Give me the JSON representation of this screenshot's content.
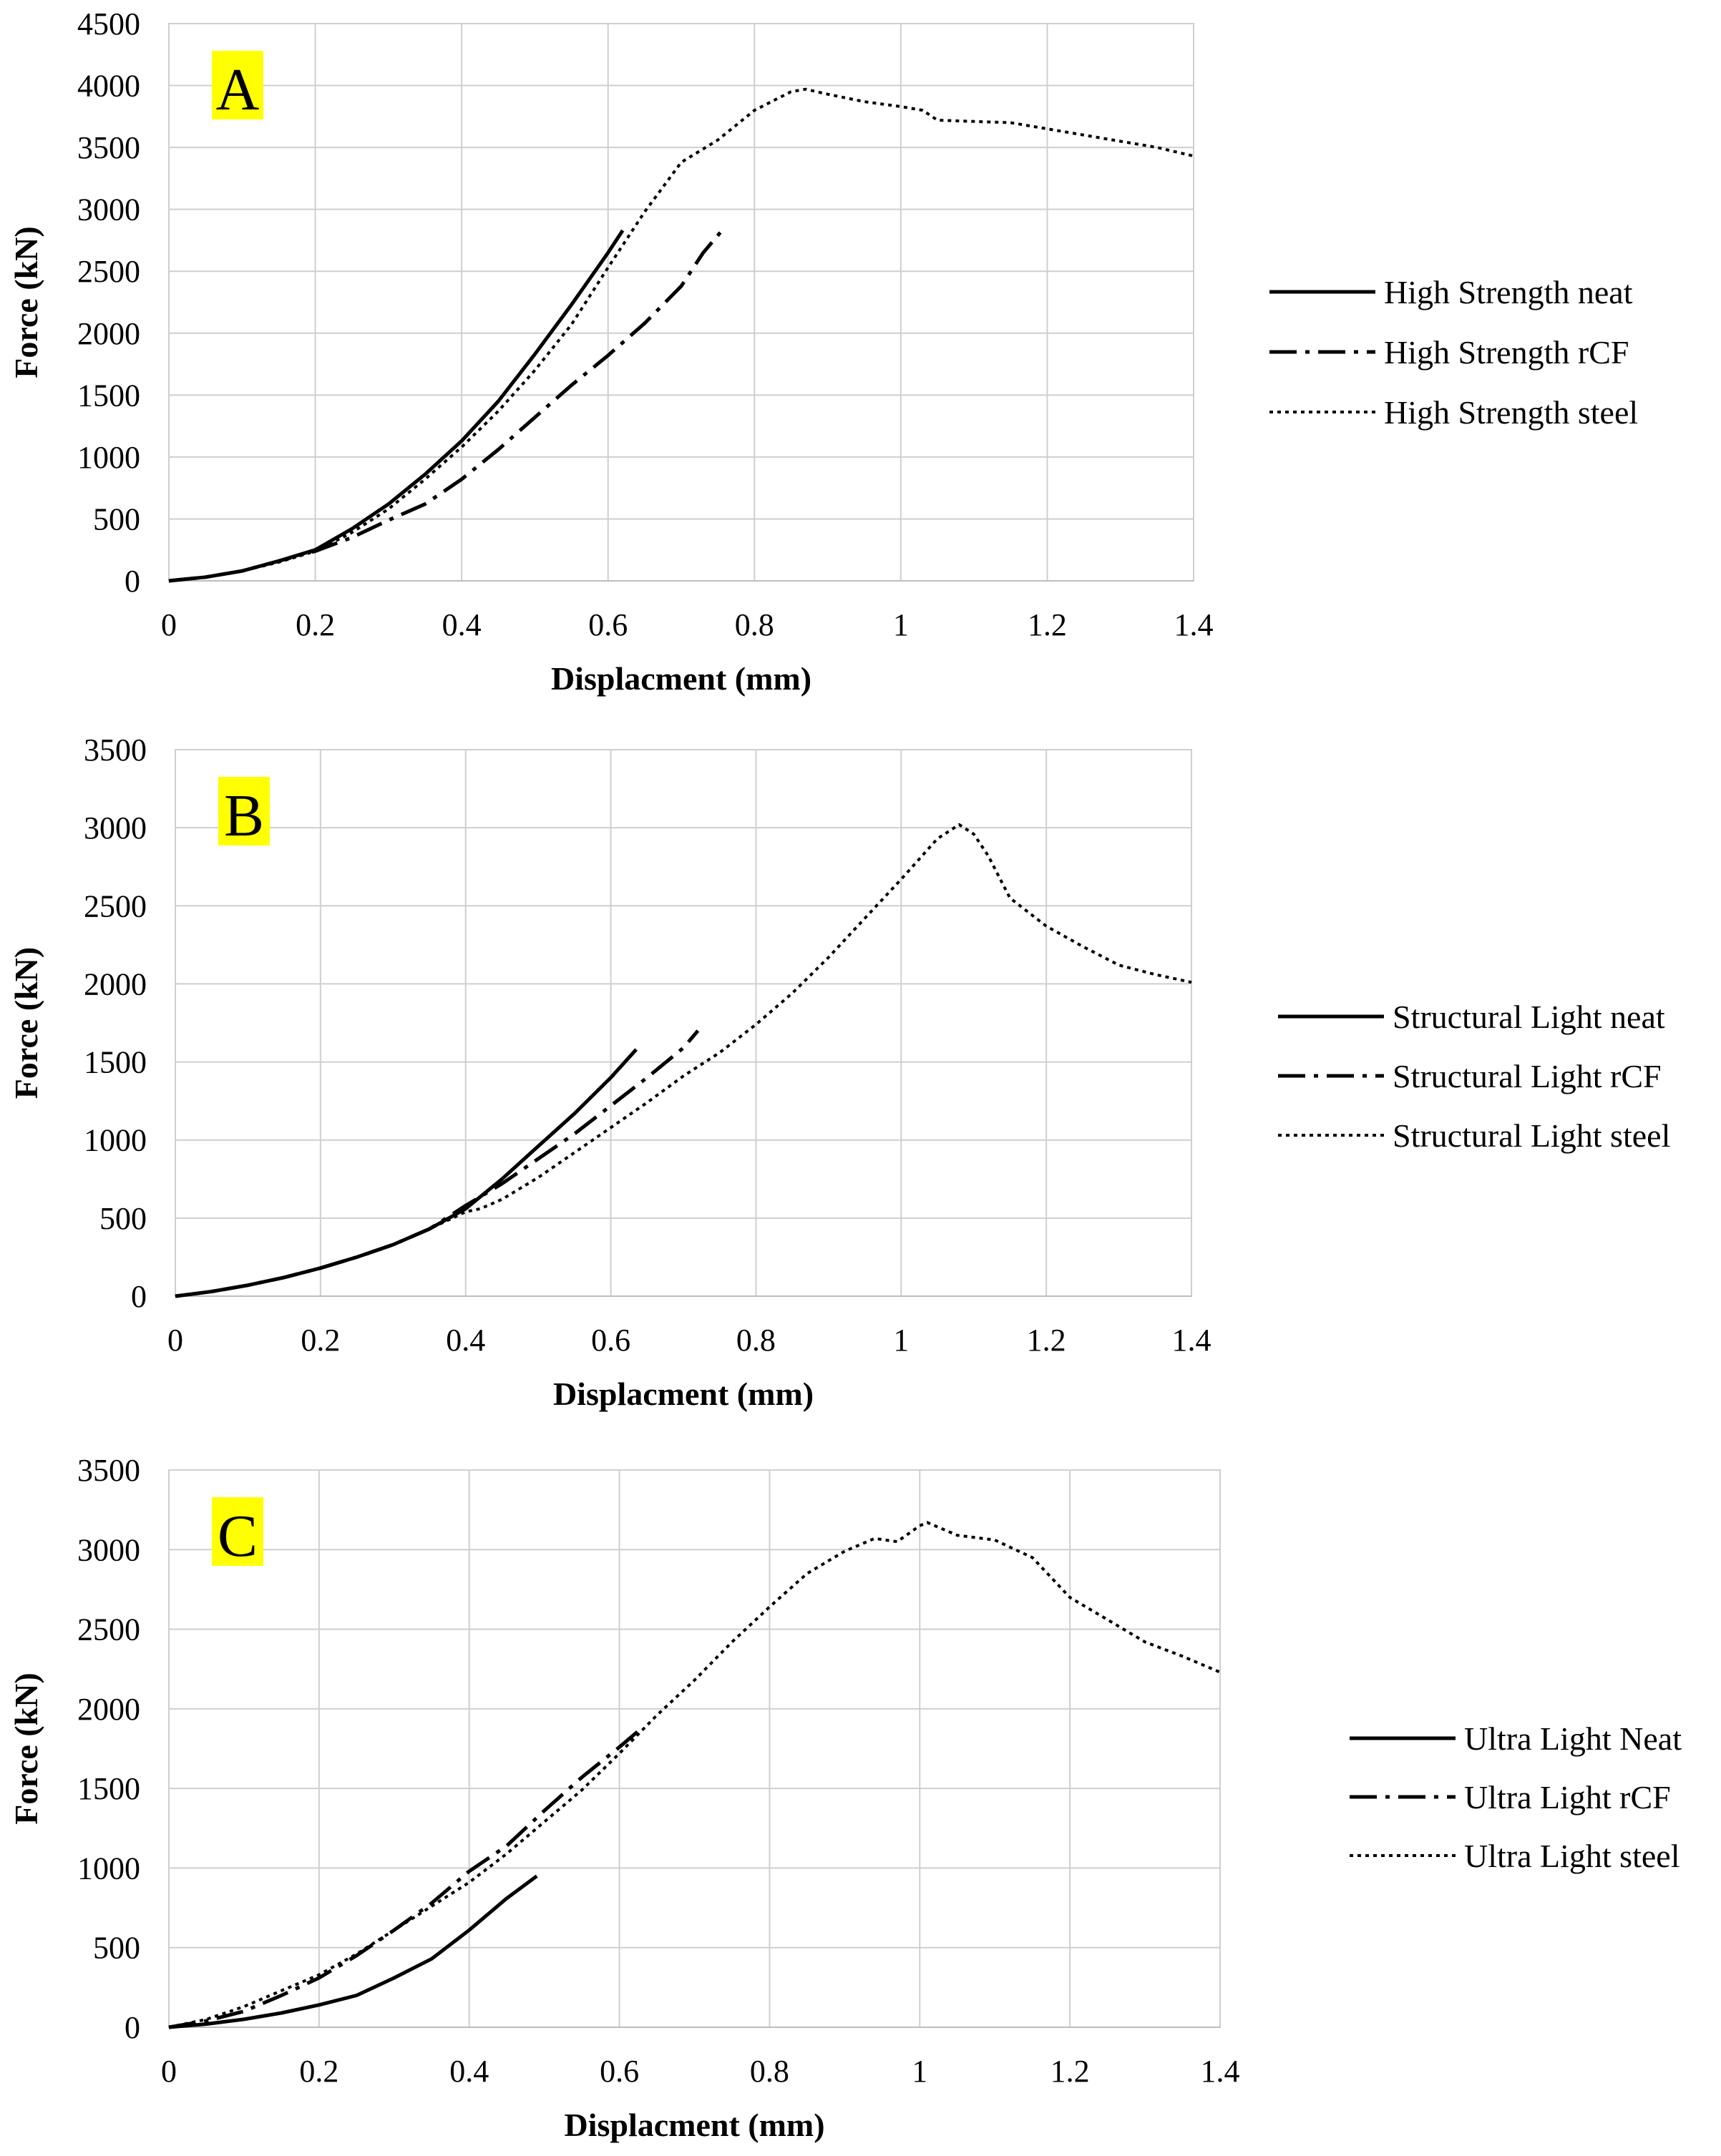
{
  "chart_data": [
    {
      "type": "line",
      "panel_label": "A",
      "panel_label_bg": "#ffff00",
      "xlabel": "Displacment (mm)",
      "ylabel": "Force (kN)",
      "xlim": [
        0,
        1.4
      ],
      "ylim": [
        0,
        4500
      ],
      "x_ticks": [
        "0",
        "0.2",
        "0.4",
        "0.6",
        "0.8",
        "1",
        "1.2",
        "1.4"
      ],
      "y_ticks": [
        "0",
        "500",
        "1000",
        "1500",
        "2000",
        "2500",
        "3000",
        "3500",
        "4000",
        "4500"
      ],
      "grid": true,
      "legend_position": "right",
      "series": [
        {
          "name": "High Strength neat",
          "style": "solid",
          "x": [
            0,
            0.05,
            0.1,
            0.15,
            0.2,
            0.25,
            0.3,
            0.35,
            0.4,
            0.45,
            0.5,
            0.55,
            0.6,
            0.62
          ],
          "y": [
            0,
            30,
            80,
            160,
            250,
            420,
            620,
            860,
            1130,
            1450,
            1830,
            2230,
            2650,
            2830
          ]
        },
        {
          "name": "High Strength rCF",
          "style": "dashdot",
          "x": [
            0,
            0.05,
            0.1,
            0.15,
            0.2,
            0.25,
            0.3,
            0.35,
            0.4,
            0.45,
            0.5,
            0.55,
            0.6,
            0.65,
            0.7,
            0.73,
            0.76
          ],
          "y": [
            0,
            30,
            80,
            160,
            240,
            350,
            490,
            620,
            820,
            1060,
            1320,
            1580,
            1820,
            2080,
            2380,
            2650,
            2860
          ]
        },
        {
          "name": "High Strength steel",
          "style": "dotted",
          "x": [
            0,
            0.05,
            0.1,
            0.15,
            0.2,
            0.25,
            0.3,
            0.35,
            0.4,
            0.45,
            0.5,
            0.55,
            0.6,
            0.65,
            0.7,
            0.75,
            0.8,
            0.85,
            0.87,
            0.9,
            0.95,
            1.0,
            1.03,
            1.05,
            1.1,
            1.15,
            1.2,
            1.25,
            1.3,
            1.35,
            1.4
          ],
          "y": [
            0,
            30,
            80,
            150,
            240,
            390,
            580,
            820,
            1080,
            1370,
            1700,
            2070,
            2530,
            2980,
            3380,
            3560,
            3800,
            3950,
            3970,
            3930,
            3870,
            3830,
            3800,
            3720,
            3710,
            3700,
            3650,
            3600,
            3550,
            3500,
            3430
          ]
        }
      ]
    },
    {
      "type": "line",
      "panel_label": "B",
      "panel_label_bg": "#ffff00",
      "xlabel": "Displacment (mm)",
      "ylabel": "Force (kN)",
      "xlim": [
        0,
        1.4
      ],
      "ylim": [
        0,
        3500
      ],
      "x_ticks": [
        "0",
        "0.2",
        "0.4",
        "0.6",
        "0.8",
        "1",
        "1.2",
        "1.4"
      ],
      "y_ticks": [
        "0",
        "500",
        "1000",
        "1500",
        "2000",
        "2500",
        "3000",
        "3500"
      ],
      "grid": true,
      "legend_position": "right",
      "series": [
        {
          "name": "Structural Light neat",
          "style": "solid",
          "x": [
            0,
            0.05,
            0.1,
            0.15,
            0.2,
            0.25,
            0.3,
            0.35,
            0.4,
            0.45,
            0.5,
            0.55,
            0.6,
            0.635
          ],
          "y": [
            0,
            30,
            70,
            120,
            180,
            250,
            330,
            430,
            560,
            750,
            960,
            1170,
            1400,
            1580
          ]
        },
        {
          "name": "Structural Light rCF",
          "style": "dashdot",
          "x": [
            0,
            0.05,
            0.1,
            0.15,
            0.2,
            0.25,
            0.3,
            0.35,
            0.4,
            0.45,
            0.5,
            0.55,
            0.6,
            0.65,
            0.7,
            0.72
          ],
          "y": [
            0,
            30,
            70,
            120,
            180,
            250,
            330,
            430,
            580,
            720,
            880,
            1040,
            1220,
            1400,
            1590,
            1700
          ]
        },
        {
          "name": "Structural Light steel",
          "style": "dotted",
          "x": [
            0,
            0.05,
            0.1,
            0.15,
            0.2,
            0.25,
            0.3,
            0.35,
            0.4,
            0.42,
            0.45,
            0.5,
            0.55,
            0.6,
            0.65,
            0.7,
            0.75,
            0.8,
            0.85,
            0.9,
            0.95,
            1.0,
            1.05,
            1.08,
            1.1,
            1.12,
            1.15,
            1.2,
            1.25,
            1.3,
            1.35,
            1.4
          ],
          "y": [
            0,
            30,
            70,
            120,
            180,
            250,
            330,
            430,
            540,
            560,
            620,
            760,
            920,
            1080,
            1240,
            1410,
            1560,
            1740,
            1940,
            2170,
            2420,
            2670,
            2930,
            3020,
            2960,
            2820,
            2550,
            2370,
            2240,
            2120,
            2060,
            2010
          ]
        }
      ]
    },
    {
      "type": "line",
      "panel_label": "C",
      "panel_label_bg": "#ffff00",
      "xlabel": "Displacment (mm)",
      "ylabel": "Force (kN)",
      "xlim": [
        0,
        1.4
      ],
      "ylim": [
        0,
        3500
      ],
      "x_ticks": [
        "0",
        "0.2",
        "0.4",
        "0.6",
        "0.8",
        "1",
        "1.2",
        "1.4"
      ],
      "y_ticks": [
        "0",
        "500",
        "1000",
        "1500",
        "2000",
        "2500",
        "3000",
        "3500"
      ],
      "grid": true,
      "legend_position": "right",
      "series": [
        {
          "name": "Ultra Light Neat",
          "style": "solid",
          "x": [
            0,
            0.05,
            0.1,
            0.15,
            0.2,
            0.25,
            0.3,
            0.35,
            0.4,
            0.45,
            0.49
          ],
          "y": [
            0,
            20,
            50,
            90,
            140,
            200,
            310,
            430,
            610,
            810,
            950
          ]
        },
        {
          "name": "Ultra Light rCF",
          "style": "dashdot",
          "x": [
            0,
            0.05,
            0.1,
            0.15,
            0.2,
            0.25,
            0.3,
            0.35,
            0.4,
            0.45,
            0.5,
            0.55,
            0.6,
            0.63
          ],
          "y": [
            0,
            40,
            100,
            200,
            310,
            450,
            610,
            780,
            980,
            1140,
            1360,
            1570,
            1760,
            1880
          ]
        },
        {
          "name": "Ultra Light steel",
          "style": "dotted",
          "x": [
            0,
            0.05,
            0.1,
            0.15,
            0.2,
            0.25,
            0.3,
            0.35,
            0.4,
            0.45,
            0.5,
            0.55,
            0.6,
            0.65,
            0.7,
            0.75,
            0.8,
            0.85,
            0.9,
            0.94,
            0.97,
            1.0,
            1.01,
            1.05,
            1.1,
            1.15,
            1.2,
            1.25,
            1.3,
            1.35,
            1.4
          ],
          "y": [
            0,
            50,
            130,
            230,
            330,
            460,
            610,
            760,
            910,
            1090,
            1290,
            1490,
            1720,
            1960,
            2180,
            2420,
            2640,
            2850,
            2990,
            3070,
            3050,
            3150,
            3170,
            3090,
            3060,
            2950,
            2700,
            2560,
            2420,
            2330,
            2230
          ]
        }
      ]
    }
  ]
}
